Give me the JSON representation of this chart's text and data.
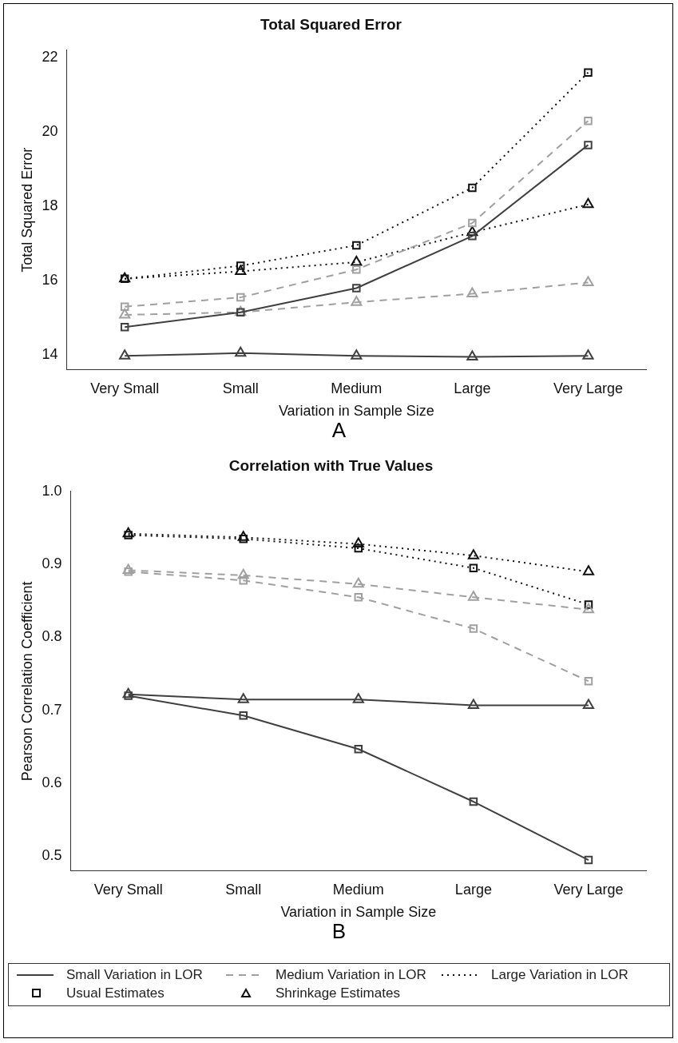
{
  "chart_data": [
    {
      "type": "line",
      "title": "Total Squared Error",
      "xlabel": "Variation in Sample Size",
      "ylabel": "Total Squared Error",
      "categories": [
        "Very Small",
        "Small",
        "Medium",
        "Large",
        "Very Large"
      ],
      "ylim": [
        13.6,
        22.2
      ],
      "yticks": [
        14,
        16,
        18,
        20,
        22
      ],
      "grid": false,
      "legend": false,
      "annotations": [
        "A"
      ],
      "series": [
        {
          "color": "#404040",
          "line_style": "solid",
          "marker": "square",
          "values": [
            14.75,
            15.15,
            15.8,
            17.2,
            19.65
          ]
        },
        {
          "color": "#404040",
          "line_style": "solid",
          "marker": "triangle",
          "values": [
            13.98,
            14.05,
            13.98,
            13.95,
            13.98
          ]
        },
        {
          "color": "#a0a0a0",
          "line_style": "dashed",
          "marker": "square",
          "values": [
            15.3,
            15.55,
            16.3,
            17.55,
            20.3
          ]
        },
        {
          "color": "#a0a0a0",
          "line_style": "dashed",
          "marker": "triangle",
          "values": [
            15.08,
            15.15,
            15.42,
            15.65,
            15.95
          ]
        },
        {
          "color": "#111111",
          "line_style": "dotted",
          "marker": "square",
          "values": [
            16.05,
            16.4,
            16.95,
            18.5,
            21.6
          ]
        },
        {
          "color": "#111111",
          "line_style": "dotted",
          "marker": "triangle",
          "values": [
            16.05,
            16.25,
            16.5,
            17.3,
            18.05
          ]
        }
      ]
    },
    {
      "type": "line",
      "title": "Correlation with True Values",
      "xlabel": "Variation in Sample Size",
      "ylabel": "Pearson Correlation Coefficient",
      "categories": [
        "Very Small",
        "Small",
        "Medium",
        "Large",
        "Very Large"
      ],
      "ylim": [
        0.48,
        1.0
      ],
      "yticks": [
        {
          "value": 0.5,
          "label": "0.5"
        },
        {
          "value": 0.6,
          "label": "0.6"
        },
        {
          "value": 0.7,
          "label": "0.7"
        },
        {
          "value": 0.8,
          "label": "0.8"
        },
        {
          "value": 0.9,
          "label": "0.9"
        },
        {
          "value": 1.0,
          "label": "1.0"
        }
      ],
      "grid": false,
      "legend": "bottom",
      "annotations": [
        "B",
        "Usual Estimates",
        "Shrinkage Estimates"
      ],
      "series": [
        {
          "name": "Small Variation in LOR",
          "color": "#404040",
          "line_style": "solid",
          "marker": "square",
          "values": [
            0.72,
            0.693,
            0.647,
            0.575,
            0.495
          ]
        },
        {
          "color": "#404040",
          "line_style": "solid",
          "marker": "triangle",
          "values": [
            0.722,
            0.715,
            0.715,
            0.707,
            0.707
          ]
        },
        {
          "name": "Medium Variation in LOR",
          "color": "#a0a0a0",
          "line_style": "dashed",
          "marker": "square",
          "values": [
            0.89,
            0.878,
            0.855,
            0.812,
            0.74
          ]
        },
        {
          "color": "#a0a0a0",
          "line_style": "dashed",
          "marker": "triangle",
          "values": [
            0.892,
            0.885,
            0.873,
            0.855,
            0.838
          ]
        },
        {
          "name": "Large Variation in LOR",
          "color": "#111111",
          "line_style": "dotted",
          "marker": "square",
          "values": [
            0.94,
            0.935,
            0.922,
            0.895,
            0.845
          ]
        },
        {
          "color": "#111111",
          "line_style": "dotted",
          "marker": "triangle",
          "values": [
            0.942,
            0.937,
            0.928,
            0.912,
            0.89
          ]
        }
      ]
    }
  ]
}
